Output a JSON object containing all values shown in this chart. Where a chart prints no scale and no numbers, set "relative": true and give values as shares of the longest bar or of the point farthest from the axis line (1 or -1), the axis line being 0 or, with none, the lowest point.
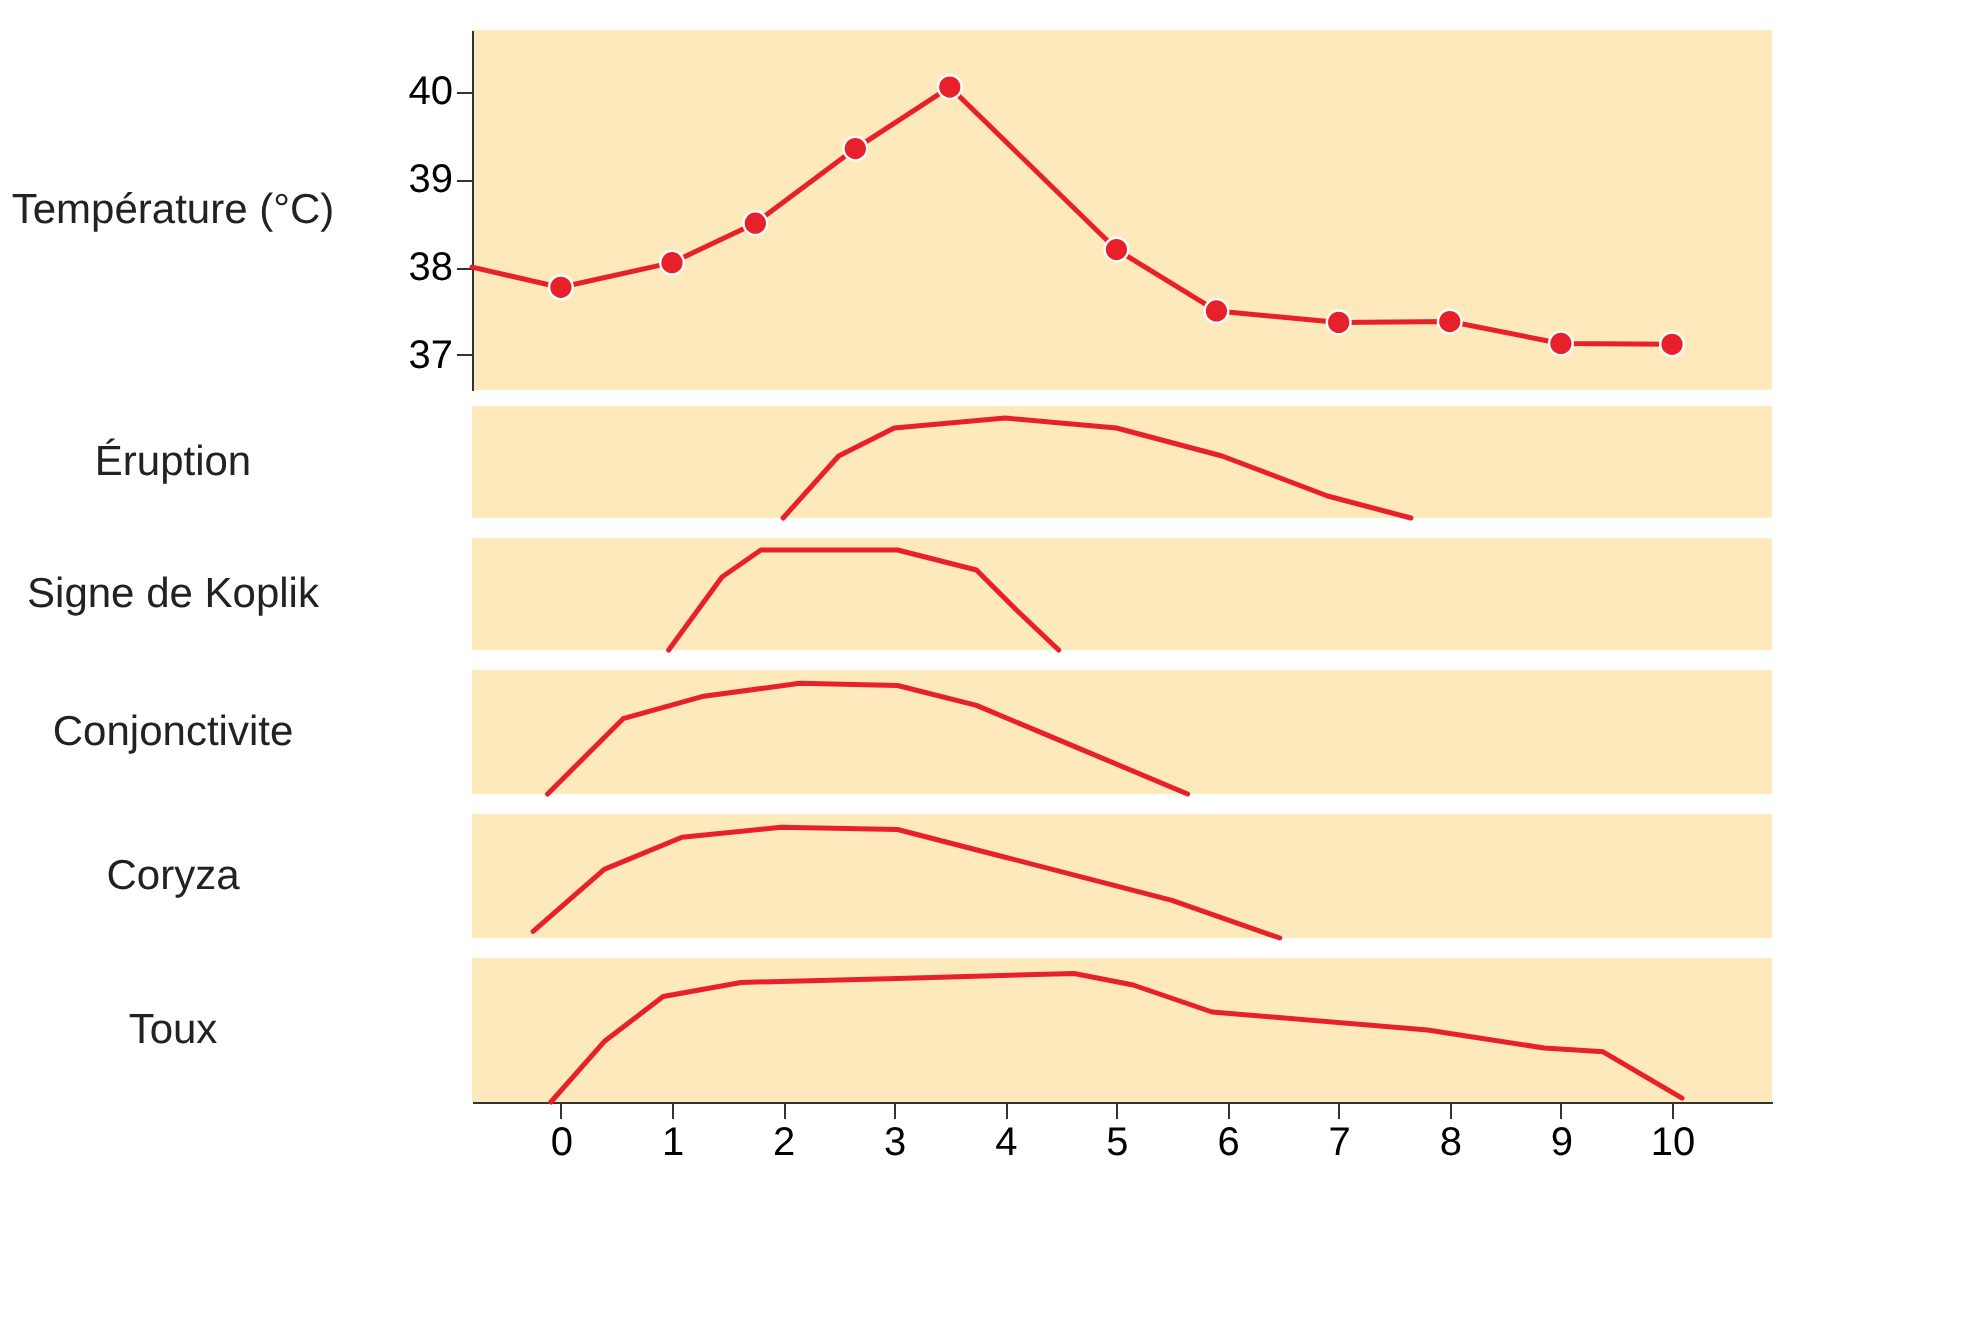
{
  "chart_data": [
    {
      "type": "line",
      "ylabel": "Température (°C)",
      "xlim": [
        -0.8,
        10.9
      ],
      "ylim": [
        36.6,
        40.7
      ],
      "yticks": [
        37,
        38,
        39,
        40
      ],
      "tick_labels": "y",
      "series": [
        {
          "color": "#e8202a",
          "marker": "none",
          "x": [
            -0.8,
            -0.08
          ],
          "values": [
            38.0,
            37.79
          ]
        },
        {
          "color": "#e8202a",
          "marker": "circle",
          "x": [
            0,
            1,
            1.75,
            2.65,
            3.5,
            5.0,
            5.9,
            7,
            8,
            9,
            10
          ],
          "values": [
            37.77,
            38.05,
            38.5,
            39.35,
            40.05,
            38.2,
            37.5,
            37.37,
            37.38,
            37.13,
            37.12
          ]
        }
      ]
    },
    {
      "type": "line",
      "relative": true,
      "ylabel": "Éruption",
      "xlim": [
        -0.8,
        10.9
      ],
      "tick_labels": false,
      "marker": "none",
      "series": [
        {
          "color": "#e8202a",
          "x": [
            2.0,
            2.5,
            3.0,
            4.0,
            5.0,
            5.95,
            6.9,
            7.65
          ],
          "values": [
            0,
            0.62,
            0.9,
            1,
            0.9,
            0.62,
            0.22,
            0
          ]
        }
      ]
    },
    {
      "type": "line",
      "relative": true,
      "ylabel": "Signe de Koplik",
      "xlim": [
        -0.8,
        10.9
      ],
      "tick_labels": false,
      "marker": "none",
      "series": [
        {
          "color": "#e8202a",
          "x": [
            0.97,
            1.45,
            1.8,
            3.03,
            3.74,
            4.1,
            4.48
          ],
          "values": [
            0,
            0.73,
            1,
            1,
            0.8,
            0.4,
            0
          ]
        }
      ]
    },
    {
      "type": "line",
      "relative": true,
      "ylabel": "Conjonctivite",
      "xlim": [
        -0.8,
        10.9
      ],
      "tick_labels": false,
      "marker": "none",
      "series": [
        {
          "color": "#e8202a",
          "x": [
            -0.12,
            0.56,
            1.27,
            2.15,
            3.03,
            3.74,
            4.62,
            5.64
          ],
          "values": [
            0,
            0.68,
            0.88,
            1,
            0.98,
            0.8,
            0.43,
            0
          ]
        }
      ]
    },
    {
      "type": "line",
      "relative": true,
      "ylabel": "Coryza",
      "xlim": [
        -0.8,
        10.9
      ],
      "tick_labels": false,
      "marker": "none",
      "series": [
        {
          "color": "#e8202a",
          "x": [
            -0.25,
            0.39,
            1.09,
            1.98,
            3.03,
            3.92,
            5.5,
            6.47
          ],
          "values": [
            0.06,
            0.62,
            0.91,
            1,
            0.98,
            0.75,
            0.34,
            0
          ]
        }
      ]
    },
    {
      "type": "line",
      "relative": true,
      "ylabel": "Toux",
      "xlim": [
        -0.8,
        10.9
      ],
      "xticks": [
        0,
        1,
        2,
        3,
        4,
        5,
        6,
        7,
        8,
        9,
        10
      ],
      "tick_labels": "x",
      "marker": "none",
      "series": [
        {
          "color": "#e8202a",
          "x": [
            -0.09,
            0.39,
            0.92,
            1.62,
            3.03,
            4.62,
            5.15,
            5.86,
            7.8,
            8.85,
            9.38,
            10.09
          ],
          "values": [
            0,
            0.47,
            0.82,
            0.93,
            0.96,
            1,
            0.91,
            0.7,
            0.56,
            0.42,
            0.39,
            0.03
          ]
        }
      ]
    }
  ]
}
